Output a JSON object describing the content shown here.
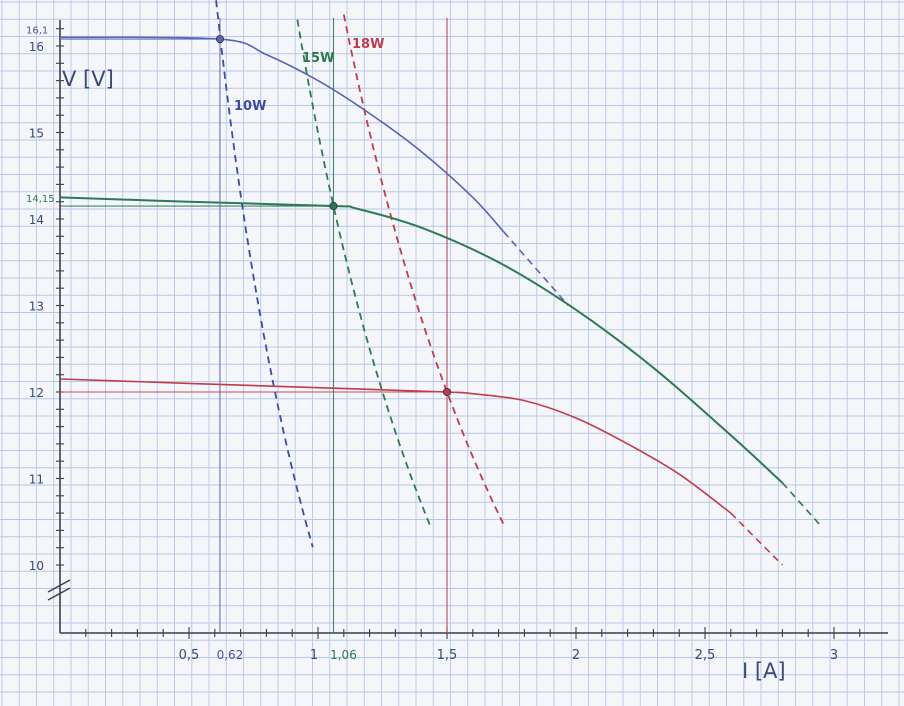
{
  "chart_data": {
    "type": "line",
    "xlabel": "I [A]",
    "ylabel": "V [V]",
    "xlim": [
      0,
      3.1
    ],
    "ylim": [
      9.25,
      16.35
    ],
    "y_break": true,
    "grid": true,
    "x_ticks": [
      {
        "value": 0.5,
        "label": "0,5"
      },
      {
        "value": 1,
        "label": "1"
      },
      {
        "value": 1.5,
        "label": "1,5"
      },
      {
        "value": 2,
        "label": "2"
      },
      {
        "value": 2.5,
        "label": "2,5"
      },
      {
        "value": 3,
        "label": "3"
      }
    ],
    "y_ticks": [
      {
        "value": 10,
        "label": "10"
      },
      {
        "value": 11,
        "label": "11"
      },
      {
        "value": 12,
        "label": "12"
      },
      {
        "value": 13,
        "label": "13"
      },
      {
        "value": 14,
        "label": "14"
      },
      {
        "value": 15,
        "label": "15"
      },
      {
        "value": 16,
        "label": "16"
      }
    ],
    "highlight_x": [
      {
        "value": 0.62,
        "label": "0,62",
        "color": "#4a52a6"
      },
      {
        "value": 1.06,
        "label": "1,06",
        "color": "#2e7a55"
      }
    ],
    "highlight_y": [
      {
        "value": 16.1,
        "label": "16,1",
        "color": "#4a52a6"
      },
      {
        "value": 14.15,
        "label": "14,15",
        "color": "#2e7a55"
      }
    ],
    "series": [
      {
        "color": "#5a63b5",
        "solid": {
          "x": [
            0,
            0.62,
            0.8,
            1.0,
            1.2,
            1.4,
            1.6,
            1.72
          ],
          "y": [
            16.1,
            16.08,
            15.9,
            15.6,
            15.22,
            14.78,
            14.25,
            13.85
          ]
        },
        "dashed": {
          "x": [
            1.72,
            1.97
          ],
          "y": [
            13.85,
            13.0
          ]
        },
        "operating_point": {
          "x": 0.62,
          "y": 16.08
        }
      },
      {
        "color": "#2e7a55",
        "solid": {
          "x": [
            0,
            0.5,
            1.06,
            1.15,
            1.4,
            1.7,
            2.0,
            2.3,
            2.6,
            2.8
          ],
          "y": [
            14.25,
            14.2,
            14.15,
            14.12,
            13.9,
            13.5,
            12.95,
            12.28,
            11.5,
            10.95
          ]
        },
        "dashed": {
          "x": [
            2.8,
            2.95
          ],
          "y": [
            10.95,
            10.45
          ]
        },
        "operating_point": {
          "x": 1.06,
          "y": 14.15
        }
      },
      {
        "color": "#c03c4c",
        "solid": {
          "x": [
            0,
            0.5,
            1.0,
            1.5,
            1.6,
            1.8,
            2.0,
            2.2,
            2.4,
            2.6
          ],
          "y": [
            12.15,
            12.1,
            12.05,
            12.0,
            11.98,
            11.9,
            11.7,
            11.4,
            11.05,
            10.6
          ]
        },
        "dashed": {
          "x": [
            2.6,
            2.8
          ],
          "y": [
            10.6,
            10.0
          ]
        },
        "operating_point": {
          "x": 1.5,
          "y": 12.0
        }
      }
    ],
    "power_curves": [
      {
        "label": "10W",
        "watts": 10,
        "color": "#3d4aa8",
        "x_from": 0.6,
        "x_to": 0.98
      },
      {
        "label": "15W",
        "watts": 15,
        "color": "#2e7a55",
        "x_from": 0.92,
        "x_to": 1.44
      },
      {
        "label": "18W",
        "watts": 18,
        "color": "#c03c4c",
        "x_from": 1.1,
        "x_to": 1.72
      }
    ]
  }
}
